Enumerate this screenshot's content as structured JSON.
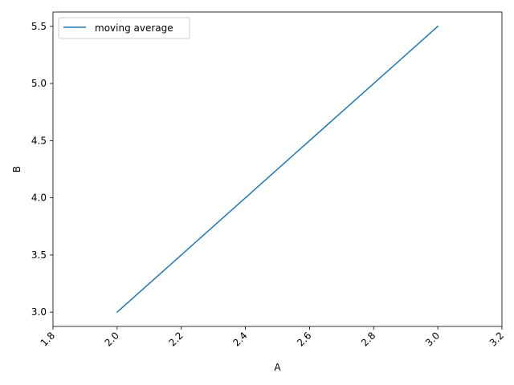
{
  "chart_data": {
    "type": "line",
    "title": "",
    "xlabel": "A",
    "ylabel": "B",
    "xlim": [
      1.8,
      3.2
    ],
    "ylim": [
      2.875,
      5.625
    ],
    "x_ticks": [
      "1.8",
      "2.0",
      "2.2",
      "2.4",
      "2.6",
      "2.8",
      "3.0",
      "3.2"
    ],
    "y_ticks": [
      "3.0",
      "3.5",
      "4.0",
      "4.5",
      "5.0",
      "5.5"
    ],
    "x_tick_rotation": "45 degrees",
    "grid": false,
    "legend_position": "upper-left",
    "series": [
      {
        "name": "moving average",
        "color": "#1f77b4",
        "x": [
          2.0,
          3.0
        ],
        "y": [
          3.0,
          5.5
        ]
      }
    ]
  }
}
